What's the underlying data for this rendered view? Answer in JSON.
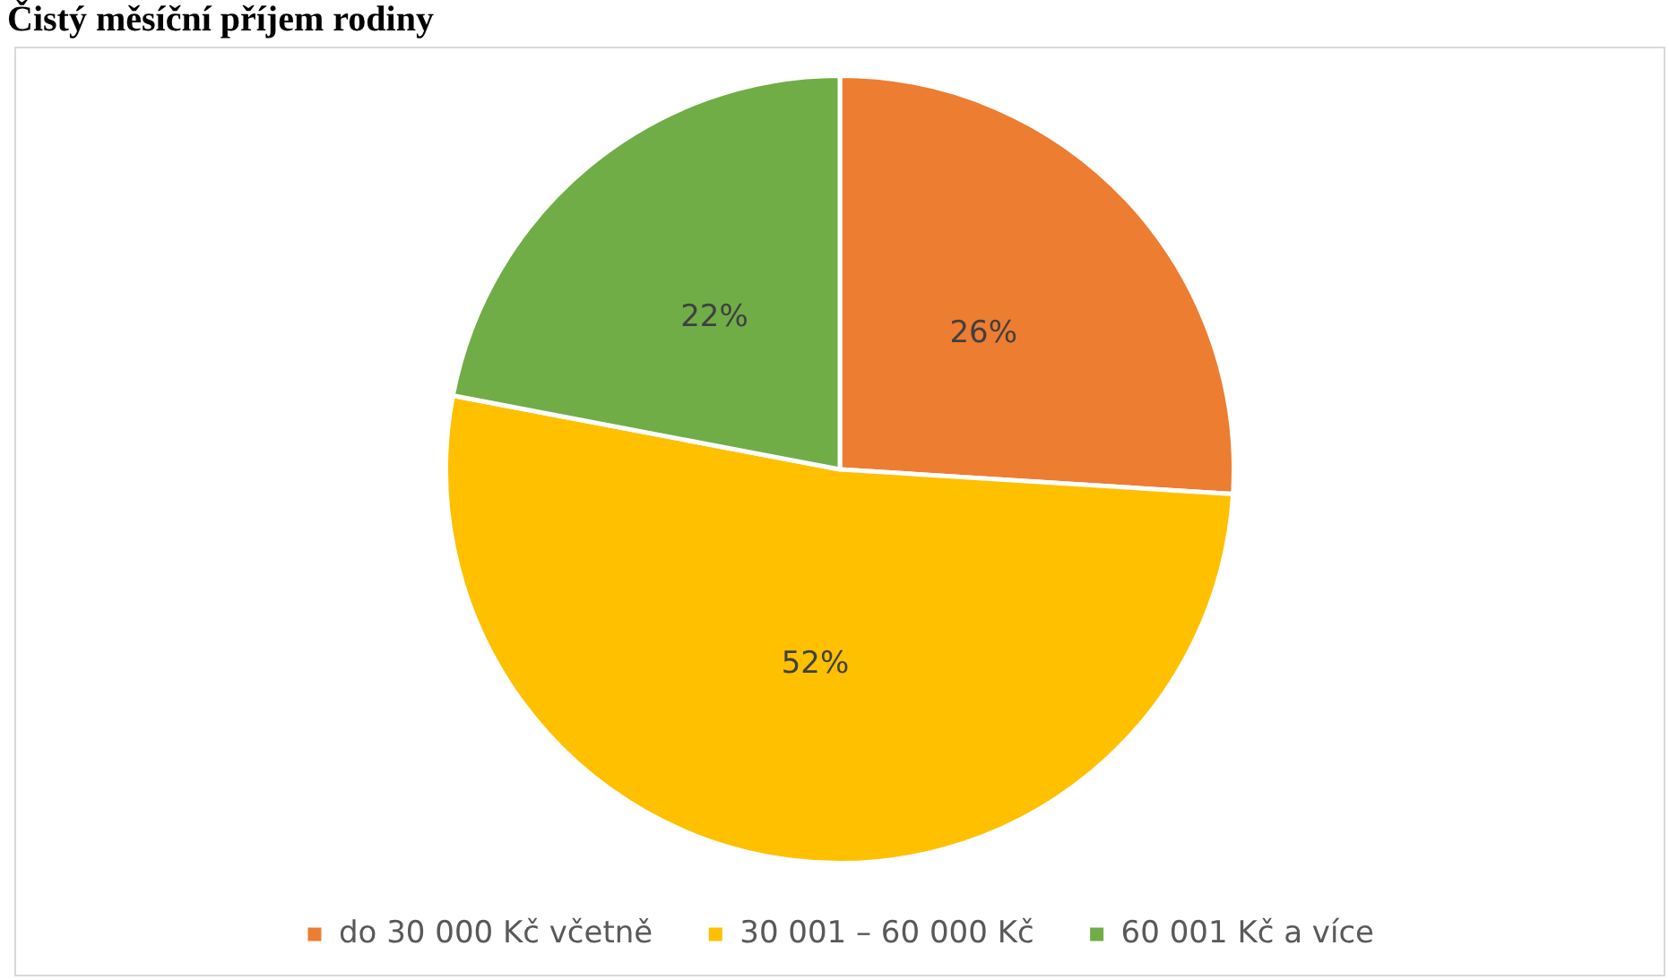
{
  "chart_data": {
    "type": "pie",
    "title": "Čistý měsíční příjem rodiny",
    "categories": [
      "do 30 000 Kč včetně",
      "30 001 – 60 000 Kč",
      "60 001 Kč a více"
    ],
    "values": [
      26,
      52,
      22
    ],
    "colors": [
      "#ed7d31",
      "#ffc000",
      "#70ad47"
    ],
    "value_labels": [
      "26%",
      "52%",
      "22%"
    ],
    "legend": "bottom"
  }
}
